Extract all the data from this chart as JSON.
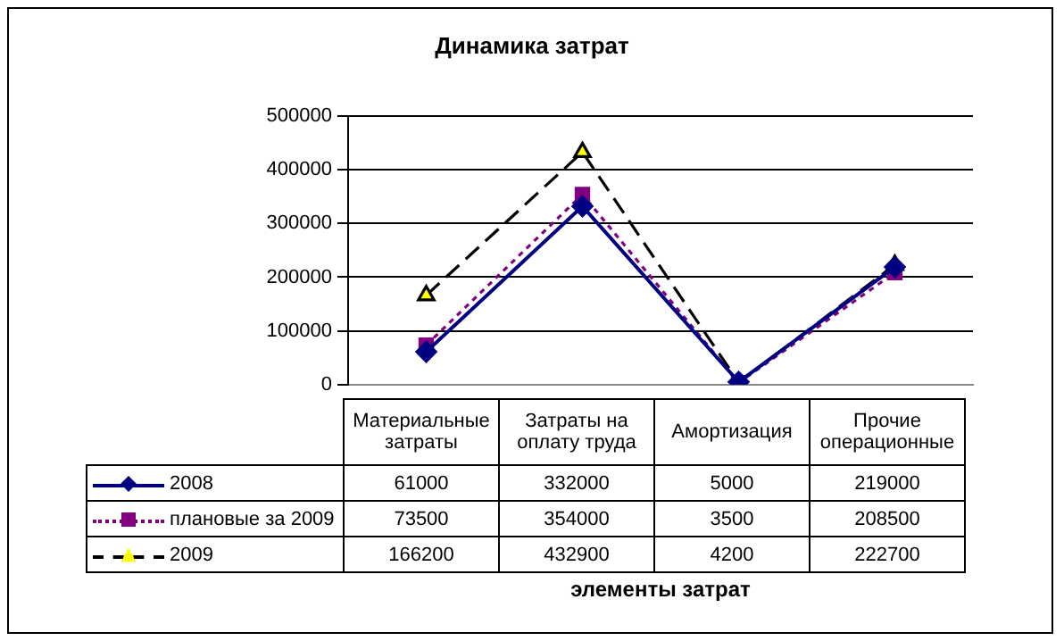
{
  "chart_data": {
    "type": "line",
    "title": "Динамика затрат",
    "annotations": [
      "элементы затрат"
    ],
    "categories": [
      "Материальные затраты",
      "Затраты на оплату труда",
      "Амортизация",
      "Прочие операционные"
    ],
    "series": [
      {
        "name": "2008",
        "color": "#000080",
        "marker": "diamond",
        "line_style": "solid",
        "values": [
          61000,
          332000,
          5000,
          219000
        ]
      },
      {
        "name": "плановые за 2009",
        "color": "#800080",
        "marker": "square",
        "line_style": "dotted",
        "values": [
          73500,
          354000,
          3500,
          208500
        ]
      },
      {
        "name": "2009",
        "color": "#000000",
        "marker": "triangle",
        "line_style": "dashed",
        "values": [
          166200,
          432900,
          4200,
          222700
        ]
      }
    ],
    "ylim": [
      0,
      500000
    ],
    "yticks": [
      0,
      100000,
      200000,
      300000,
      400000,
      500000
    ],
    "grid": "y",
    "legend": "bottom",
    "data_labels": true
  }
}
